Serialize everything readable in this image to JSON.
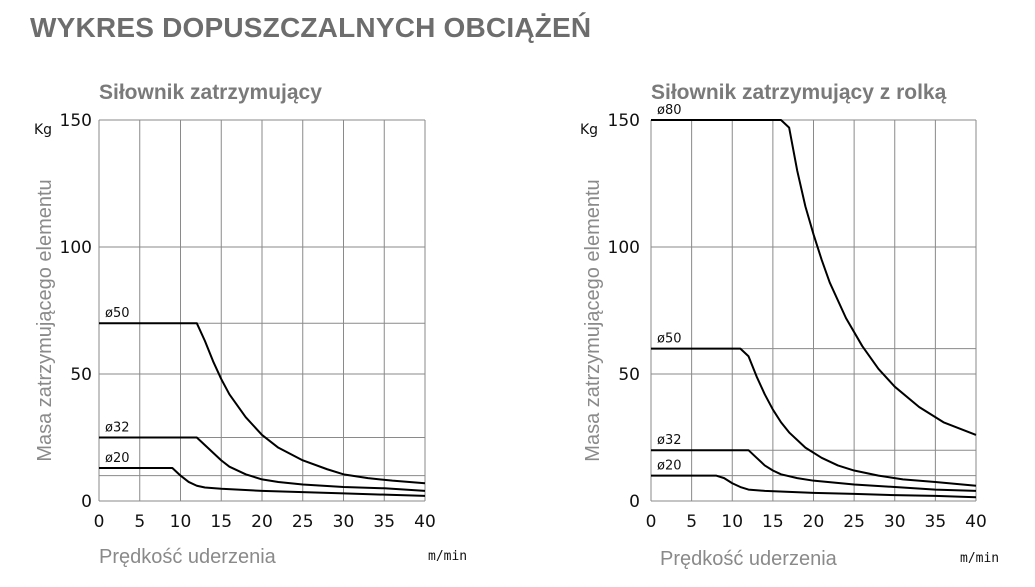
{
  "page": {
    "title": "WYKRES DOPUSZCZALNYCH OBCIĄŻEŃ"
  },
  "chart_data": [
    {
      "type": "line",
      "title": "Siłownik zatrzymujący",
      "ylabel": "Masa zatrzymującego elementu",
      "yunit": "Kg",
      "xlabel": "Prędkość uderzenia",
      "xunit": "m/min",
      "xlim": [
        0,
        40
      ],
      "ylim": [
        0,
        150
      ],
      "xticks": [
        "0",
        "5",
        "10",
        "15",
        "20",
        "25",
        "30",
        "35",
        "40"
      ],
      "yticks": [
        "0",
        "50",
        "100",
        "150"
      ],
      "grid": true,
      "series": [
        {
          "name": "ø50",
          "x": [
            0,
            12,
            13,
            14,
            15,
            16,
            18,
            20,
            22,
            25,
            28,
            30,
            33,
            36,
            40
          ],
          "y": [
            70,
            70,
            63,
            55,
            48,
            42,
            33,
            26,
            21,
            16,
            12.5,
            10.5,
            9,
            8,
            7
          ]
        },
        {
          "name": "ø32",
          "x": [
            0,
            12,
            13,
            14,
            15,
            16,
            18,
            20,
            22,
            25,
            30,
            35,
            40
          ],
          "y": [
            25,
            25,
            22,
            19,
            16,
            13.5,
            10.5,
            8.5,
            7.5,
            6.5,
            5.5,
            5,
            4
          ]
        },
        {
          "name": "ø20",
          "x": [
            0,
            9,
            10,
            11,
            12,
            13,
            15,
            20,
            25,
            30,
            35,
            40
          ],
          "y": [
            13,
            13,
            10,
            7.5,
            6,
            5.3,
            4.8,
            4,
            3.5,
            3,
            2.5,
            2
          ]
        }
      ]
    },
    {
      "type": "line",
      "title": "Siłownik zatrzymujący z rolką",
      "ylabel": "Masa zatrzymującego elementu",
      "yunit": "Kg",
      "xlabel": "Prędkość uderzenia",
      "xunit": "m/min",
      "xlim": [
        0,
        40
      ],
      "ylim": [
        0,
        150
      ],
      "xticks": [
        "0",
        "5",
        "10",
        "15",
        "20",
        "25",
        "30",
        "35",
        "40"
      ],
      "yticks": [
        "0",
        "50",
        "100",
        "150"
      ],
      "grid": true,
      "series": [
        {
          "name": "ø80",
          "x": [
            0,
            16,
            17,
            18,
            19,
            20,
            21,
            22,
            24,
            26,
            28,
            30,
            33,
            36,
            40
          ],
          "y": [
            150,
            150,
            147,
            130,
            116,
            105,
            95,
            86,
            72,
            61,
            52,
            45,
            37,
            31,
            26
          ]
        },
        {
          "name": "ø50",
          "x": [
            0,
            11,
            12,
            13,
            14,
            15,
            16,
            17,
            19,
            21,
            23,
            25,
            28,
            31,
            35,
            40
          ],
          "y": [
            60,
            60,
            57,
            49,
            42,
            36,
            31,
            27,
            21,
            17,
            14,
            12,
            10,
            8.5,
            7.5,
            6
          ]
        },
        {
          "name": "ø32",
          "x": [
            0,
            12,
            13,
            14,
            15,
            16,
            18,
            20,
            25,
            30,
            35,
            40
          ],
          "y": [
            20,
            20,
            17,
            14,
            12,
            10.5,
            9,
            8,
            6.5,
            5.5,
            4.5,
            4
          ]
        },
        {
          "name": "ø20",
          "x": [
            0,
            8,
            9,
            10,
            11,
            12,
            14,
            17,
            20,
            25,
            30,
            35,
            40
          ],
          "y": [
            10,
            10,
            9,
            7,
            5.5,
            4.5,
            4,
            3.6,
            3.2,
            2.8,
            2.3,
            2,
            1.5
          ]
        }
      ]
    }
  ]
}
